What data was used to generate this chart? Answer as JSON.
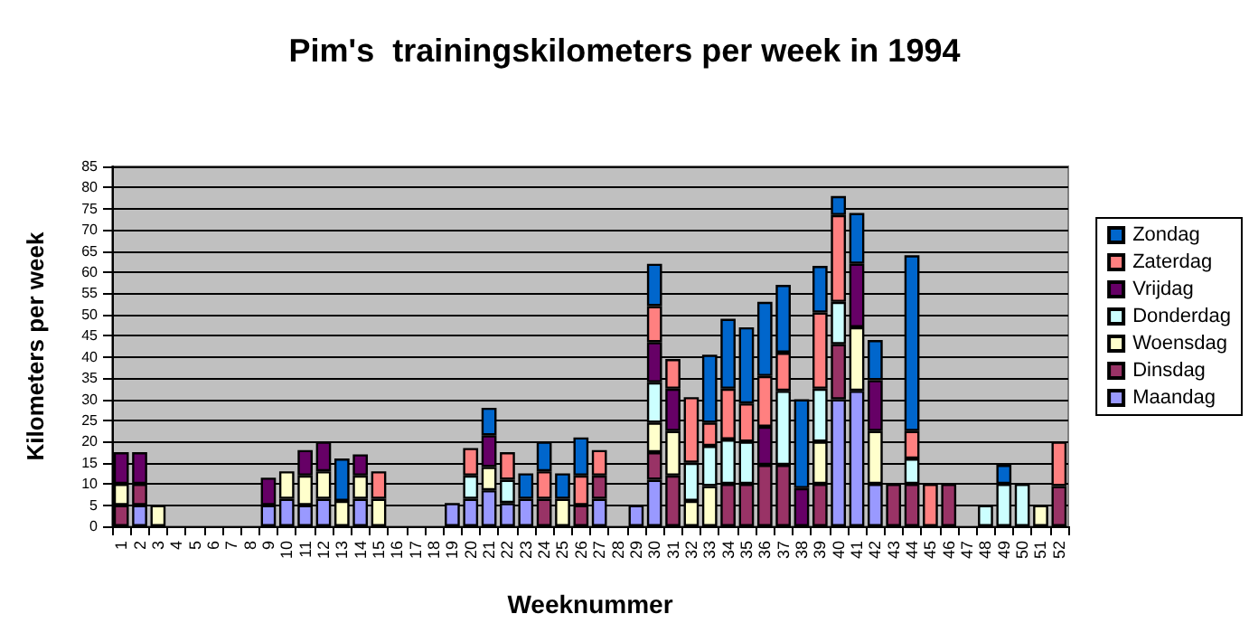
{
  "chart_data": {
    "type": "bar",
    "stacked": true,
    "title": "Pim's  trainingskilometers per week in 1994",
    "xlabel": "Weeknummer",
    "ylabel": "Kilometers per week",
    "categories": [
      "1",
      "2",
      "3",
      "4",
      "5",
      "6",
      "7",
      "8",
      "9",
      "10",
      "11",
      "12",
      "13",
      "14",
      "15",
      "16",
      "17",
      "18",
      "19",
      "20",
      "21",
      "22",
      "23",
      "24",
      "25",
      "26",
      "27",
      "28",
      "29",
      "30",
      "31",
      "32",
      "33",
      "34",
      "35",
      "36",
      "37",
      "38",
      "39",
      "40",
      "41",
      "42",
      "43",
      "44",
      "45",
      "46",
      "47",
      "48",
      "49",
      "50",
      "51",
      "52"
    ],
    "ylim": [
      0,
      85
    ],
    "yticks": [
      0,
      5,
      10,
      15,
      20,
      25,
      30,
      35,
      40,
      45,
      50,
      55,
      60,
      65,
      70,
      75,
      80,
      85
    ],
    "grid": "y",
    "legend": "right",
    "series": [
      {
        "name": "Maandag",
        "color": "#9999ff",
        "values": [
          null,
          5,
          null,
          null,
          null,
          null,
          null,
          null,
          5,
          6.5,
          5,
          6.5,
          null,
          6.5,
          null,
          null,
          null,
          null,
          5.5,
          6.5,
          8.5,
          5.5,
          6.5,
          null,
          null,
          null,
          6.5,
          null,
          5,
          11,
          null,
          null,
          null,
          null,
          null,
          null,
          null,
          null,
          null,
          30,
          32,
          10,
          null,
          null,
          null,
          null,
          null,
          null,
          null,
          null,
          null,
          null
        ]
      },
      {
        "name": "Dinsdag",
        "color": "#993366",
        "values": [
          5,
          5,
          null,
          null,
          null,
          null,
          null,
          null,
          null,
          null,
          null,
          null,
          null,
          null,
          null,
          null,
          null,
          null,
          null,
          null,
          null,
          null,
          null,
          6.5,
          null,
          5,
          5.5,
          null,
          null,
          6.5,
          12,
          null,
          null,
          10,
          10,
          14.5,
          14.5,
          null,
          10,
          13,
          null,
          null,
          10,
          10,
          null,
          10,
          null,
          null,
          null,
          null,
          null,
          9.5
        ]
      },
      {
        "name": "Woensdag",
        "color": "#ffffcc",
        "values": [
          5,
          null,
          5,
          null,
          null,
          null,
          null,
          null,
          null,
          6.5,
          7,
          6.5,
          6,
          5.5,
          6.5,
          null,
          null,
          null,
          null,
          null,
          5.5,
          null,
          null,
          null,
          6.5,
          null,
          null,
          null,
          null,
          7,
          10.5,
          6,
          9.5,
          null,
          null,
          null,
          null,
          null,
          10,
          null,
          15,
          12.5,
          null,
          null,
          null,
          null,
          null,
          null,
          null,
          null,
          5,
          null
        ]
      },
      {
        "name": "Donderdag",
        "color": "#ccffff",
        "values": [
          null,
          null,
          null,
          null,
          null,
          null,
          null,
          null,
          null,
          null,
          null,
          null,
          null,
          null,
          null,
          null,
          null,
          null,
          null,
          5.5,
          null,
          5.5,
          null,
          null,
          null,
          null,
          null,
          null,
          null,
          9.5,
          null,
          9,
          9.5,
          10.5,
          10,
          null,
          17.5,
          null,
          12.5,
          10,
          null,
          null,
          null,
          6,
          null,
          null,
          null,
          5,
          10,
          10,
          null,
          null
        ]
      },
      {
        "name": "Vrijdag",
        "color": "#660066",
        "values": [
          7.5,
          7.5,
          null,
          null,
          null,
          null,
          null,
          null,
          6.5,
          null,
          6,
          7,
          null,
          5,
          null,
          null,
          null,
          null,
          null,
          null,
          7.5,
          null,
          null,
          null,
          null,
          null,
          null,
          null,
          null,
          9.5,
          10,
          null,
          null,
          null,
          null,
          9,
          null,
          9,
          null,
          null,
          15,
          12,
          null,
          null,
          null,
          null,
          null,
          null,
          null,
          null,
          null,
          null
        ]
      },
      {
        "name": "Zaterdag",
        "color": "#ff8080",
        "values": [
          null,
          null,
          null,
          null,
          null,
          null,
          null,
          null,
          null,
          null,
          null,
          null,
          null,
          null,
          6.5,
          null,
          null,
          null,
          null,
          6.5,
          null,
          6.5,
          null,
          6.5,
          null,
          7,
          6,
          null,
          null,
          8.5,
          7,
          15.5,
          5.5,
          12,
          9,
          12,
          9,
          null,
          18,
          20.5,
          null,
          null,
          null,
          6.5,
          10,
          null,
          null,
          null,
          null,
          null,
          null,
          10.5
        ]
      },
      {
        "name": "Zondag",
        "color": "#0066cc",
        "values": [
          null,
          null,
          null,
          null,
          null,
          null,
          null,
          null,
          null,
          null,
          null,
          null,
          10,
          null,
          null,
          null,
          null,
          null,
          null,
          null,
          6.5,
          null,
          6,
          7,
          6,
          9,
          null,
          null,
          null,
          10,
          null,
          null,
          16,
          16.5,
          18,
          17.5,
          16,
          21,
          11,
          4.5,
          12,
          9.5,
          null,
          41.5,
          null,
          null,
          null,
          null,
          4.5,
          null,
          null,
          null
        ]
      }
    ]
  }
}
